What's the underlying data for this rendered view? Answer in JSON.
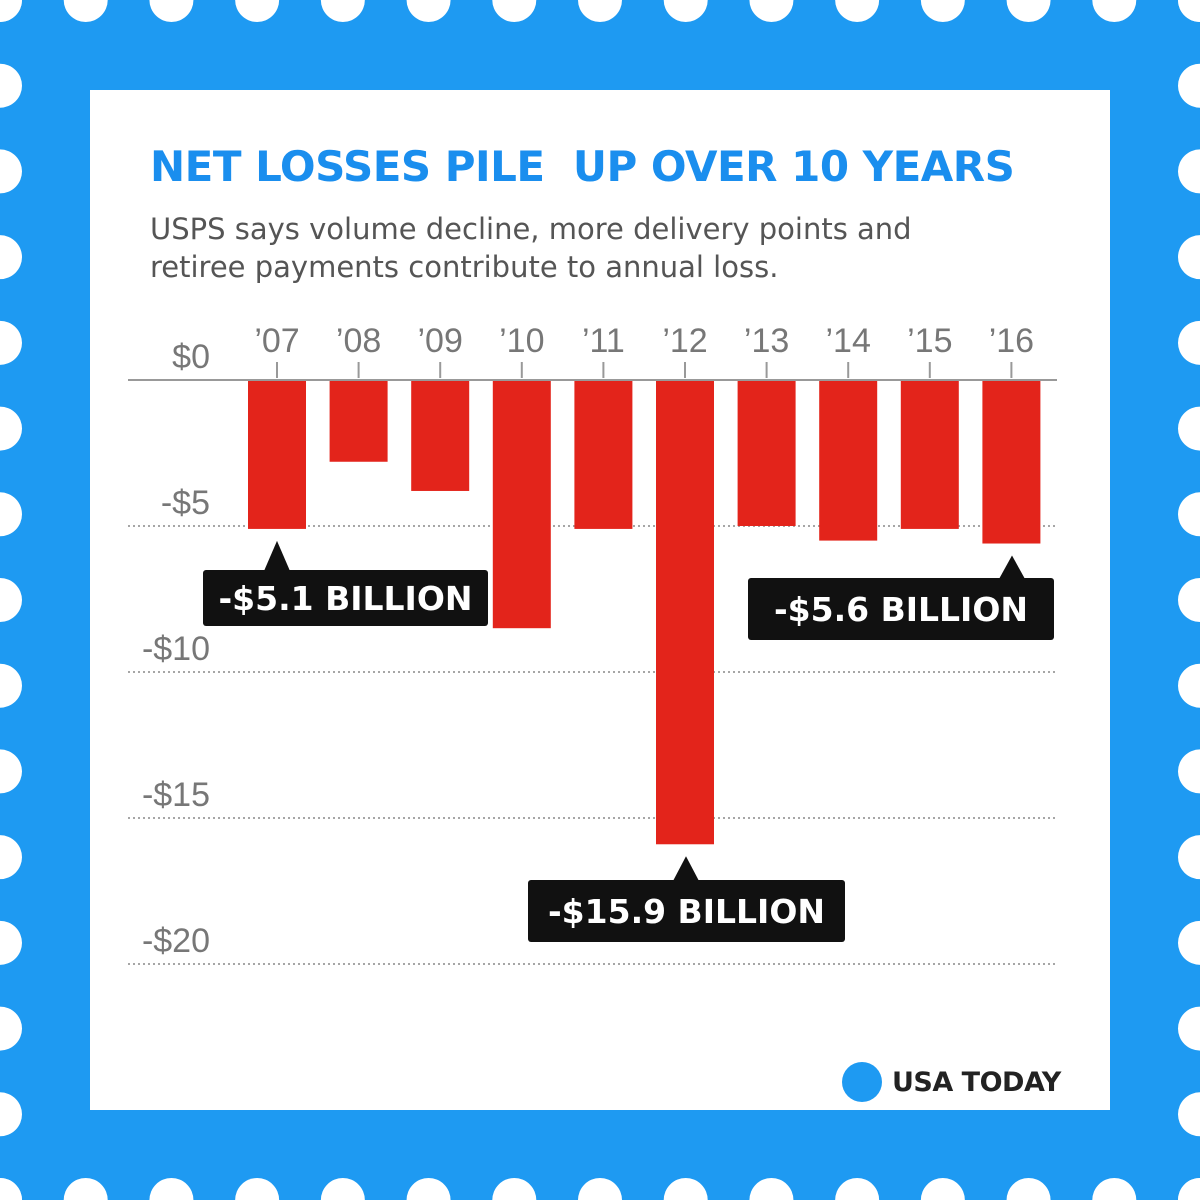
{
  "colors": {
    "frame": "#1e9af2",
    "title": "#1a8eee",
    "bar": "#e3241b",
    "callout": "#111111",
    "brand_dot": "#1e9af2"
  },
  "title": "NET LOSSES PILE  UP OVER 10 YEARS",
  "subtitle": "USPS says volume decline, more delivery points and retiree payments contribute to annual loss.",
  "brand": {
    "name": "USA TODAY",
    "icon": "usa-today-dot-icon"
  },
  "chart_data": {
    "type": "bar",
    "title": "NET LOSSES PILE  UP OVER 10 YEARS",
    "xlabel": "",
    "ylabel": "",
    "categories": [
      "’07",
      "’08",
      "’09",
      "’10",
      "’11",
      "’12",
      "’13",
      "’14",
      "’15",
      "’16"
    ],
    "values": [
      -5.1,
      -2.8,
      -3.8,
      -8.5,
      -5.1,
      -15.9,
      -5.0,
      -5.5,
      -5.1,
      -5.6
    ],
    "ylim": [
      -20,
      0
    ],
    "yticks": [
      0,
      -5,
      -10,
      -15,
      -20
    ],
    "ytick_labels": [
      "$0",
      "-$5",
      "-$10",
      "-$15",
      "-$20"
    ],
    "grid": true,
    "annotations": [
      {
        "category_index": 0,
        "text": "-$5.1 BILLION"
      },
      {
        "category_index": 5,
        "text": "-$15.9 BILLION"
      },
      {
        "category_index": 9,
        "text": "-$5.6 BILLION"
      }
    ]
  }
}
